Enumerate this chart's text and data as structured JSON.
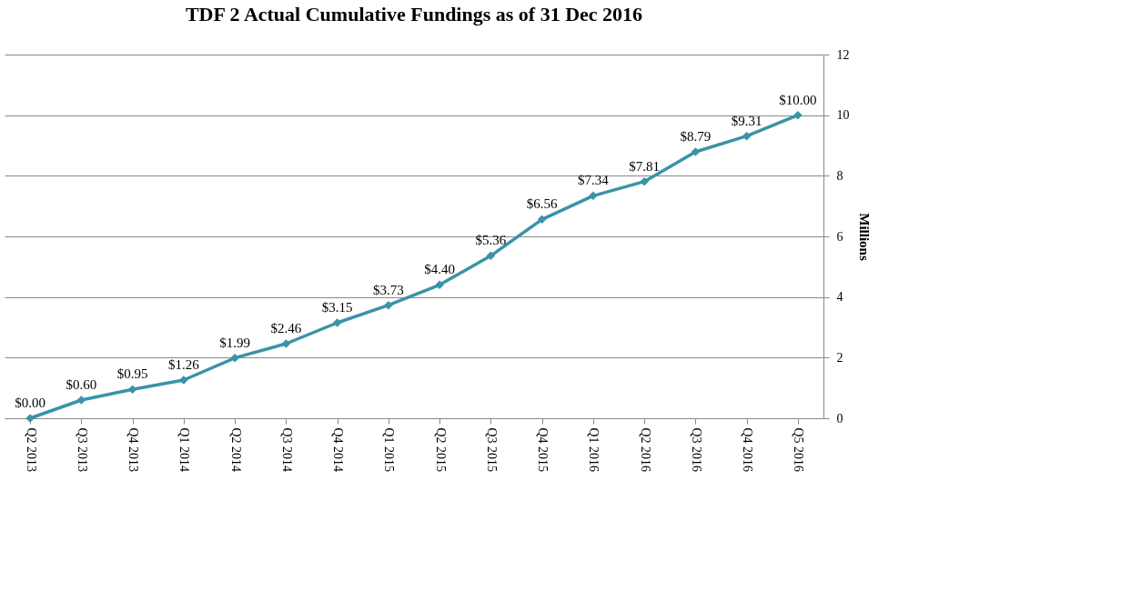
{
  "chart_data": {
    "type": "line",
    "title": "TDF 2 Actual Cumulative Fundings as of 31 Dec 2016",
    "ylabel": "Millions",
    "categories": [
      "Q2 2013",
      "Q3 2013",
      "Q4 2013",
      "Q1 2014",
      "Q2 2014",
      "Q3 2014",
      "Q4 2014",
      "Q1 2015",
      "Q2 2015",
      "Q3 2015",
      "Q4 2015",
      "Q1 2016",
      "Q2 2016",
      "Q3 2016",
      "Q4 2016",
      "Q5 2016"
    ],
    "series": [
      {
        "color": "#3a93a8",
        "values": [
          0.0,
          0.6,
          0.95,
          1.26,
          1.99,
          2.46,
          3.15,
          3.73,
          4.4,
          5.36,
          6.56,
          7.34,
          7.81,
          8.79,
          9.31,
          10.0
        ],
        "value_labels": [
          "$0.00",
          "$0.60",
          "$0.95",
          "$1.26",
          "$1.99",
          "$2.46",
          "$3.15",
          "$3.73",
          "$4.40",
          "$5.36",
          "$6.56",
          "$7.34",
          "$7.81",
          "$8.79",
          "$9.31",
          "$10.00"
        ]
      }
    ],
    "ylim": [
      0,
      12
    ],
    "yticks": [
      0,
      2,
      4,
      6,
      8,
      10,
      12
    ],
    "grid": "y",
    "marker": "diamond",
    "line_style": "solid"
  }
}
